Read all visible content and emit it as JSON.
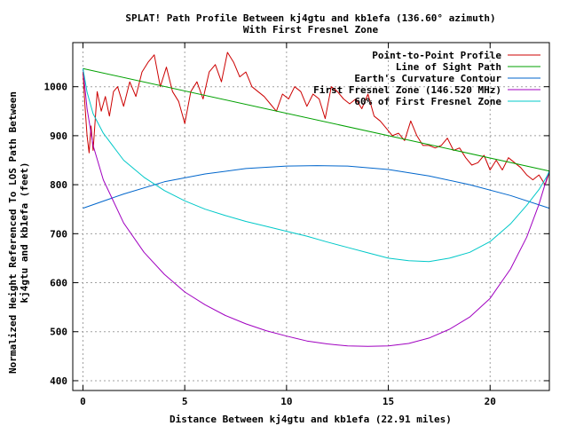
{
  "chart_data": {
    "type": "line",
    "title": "SPLAT! Path Profile Between kj4gtu and kb1efa (136.60° azimuth)",
    "subtitle": "With First Fresnel Zone",
    "xlabel": "Distance Between kj4gtu and kb1efa (22.91 miles)",
    "ylabel_line1": "Normalized Height Referenced To LOS Path Between",
    "ylabel_line2": "kj4gtu and kb1efa (feet)",
    "xlim": [
      -0.5,
      22.91
    ],
    "ylim": [
      380,
      1090
    ],
    "xticks": [
      0,
      5,
      10,
      15,
      20
    ],
    "yticks": [
      400,
      500,
      600,
      700,
      800,
      900,
      1000
    ],
    "grid": true,
    "legend_position": "top-right",
    "series": [
      {
        "name": "Point-to-Point Profile",
        "color": "#cc0000",
        "x": [
          0,
          0.1,
          0.2,
          0.3,
          0.4,
          0.5,
          0.7,
          0.9,
          1.1,
          1.3,
          1.5,
          1.7,
          2.0,
          2.3,
          2.6,
          2.9,
          3.2,
          3.5,
          3.8,
          4.1,
          4.4,
          4.7,
          5.0,
          5.3,
          5.6,
          5.9,
          6.2,
          6.5,
          6.8,
          7.1,
          7.4,
          7.7,
          8.0,
          8.3,
          8.6,
          8.9,
          9.2,
          9.5,
          9.8,
          10.1,
          10.4,
          10.7,
          11.0,
          11.3,
          11.6,
          11.9,
          12.2,
          12.5,
          12.8,
          13.1,
          13.4,
          13.7,
          14.0,
          14.3,
          14.6,
          14.9,
          15.2,
          15.5,
          15.8,
          16.1,
          16.4,
          16.7,
          17.0,
          17.3,
          17.6,
          17.9,
          18.2,
          18.5,
          18.8,
          19.1,
          19.4,
          19.7,
          20.0,
          20.3,
          20.6,
          20.9,
          21.2,
          21.5,
          21.8,
          22.1,
          22.4,
          22.7,
          22.91
        ],
        "y": [
          1030,
          960,
          900,
          865,
          920,
          870,
          990,
          950,
          980,
          940,
          990,
          1000,
          960,
          1010,
          980,
          1030,
          1050,
          1065,
          1000,
          1040,
          990,
          970,
          925,
          990,
          1010,
          975,
          1030,
          1045,
          1010,
          1070,
          1050,
          1020,
          1030,
          1000,
          990,
          980,
          965,
          950,
          985,
          975,
          1000,
          990,
          960,
          985,
          975,
          935,
          1000,
          990,
          975,
          965,
          975,
          955,
          985,
          940,
          930,
          915,
          900,
          905,
          890,
          930,
          900,
          880,
          880,
          875,
          880,
          895,
          870,
          875,
          855,
          840,
          845,
          860,
          830,
          850,
          830,
          855,
          845,
          835,
          820,
          810,
          820,
          800,
          825
        ]
      },
      {
        "name": "Line of Sight Path",
        "color": "#00a000",
        "x": [
          0,
          22.91
        ],
        "y": [
          1037,
          828
        ]
      },
      {
        "name": "Earth's Curvature Contour",
        "color": "#0066cc",
        "x": [
          0,
          2,
          4,
          6,
          8,
          10,
          11.5,
          13,
          15,
          17,
          19,
          21,
          22.91
        ],
        "y": [
          752,
          781,
          806,
          822,
          833,
          838,
          839,
          838,
          831,
          818,
          800,
          778,
          752
        ]
      },
      {
        "name": "First Fresnel Zone (146.520 MHz)",
        "color": "#a000c0",
        "x": [
          0,
          0.2,
          0.5,
          1,
          2,
          3,
          4,
          5,
          6,
          7,
          8,
          9,
          10,
          11,
          12,
          13,
          14,
          15,
          16,
          17,
          18,
          19,
          20,
          21,
          21.8,
          22.4,
          22.8,
          22.91
        ],
        "y": [
          1037,
          955,
          880,
          810,
          722,
          662,
          617,
          581,
          555,
          533,
          516,
          502,
          491,
          481,
          475,
          471,
          470,
          471,
          476,
          487,
          505,
          530,
          568,
          628,
          693,
          760,
          815,
          828
        ]
      },
      {
        "name": "60% of First Fresnel Zone",
        "color": "#00c8c8",
        "x": [
          0,
          0.2,
          0.5,
          1,
          2,
          3,
          4,
          5,
          6,
          7,
          8,
          9,
          10,
          11,
          12,
          13,
          14,
          15,
          16,
          17,
          18,
          19,
          20,
          21,
          21.8,
          22.4,
          22.8,
          22.91
        ],
        "y": [
          1037,
          989,
          945,
          905,
          850,
          815,
          788,
          767,
          750,
          737,
          725,
          715,
          705,
          695,
          683,
          672,
          661,
          650,
          645,
          643,
          650,
          662,
          684,
          720,
          758,
          790,
          818,
          828
        ]
      }
    ]
  }
}
